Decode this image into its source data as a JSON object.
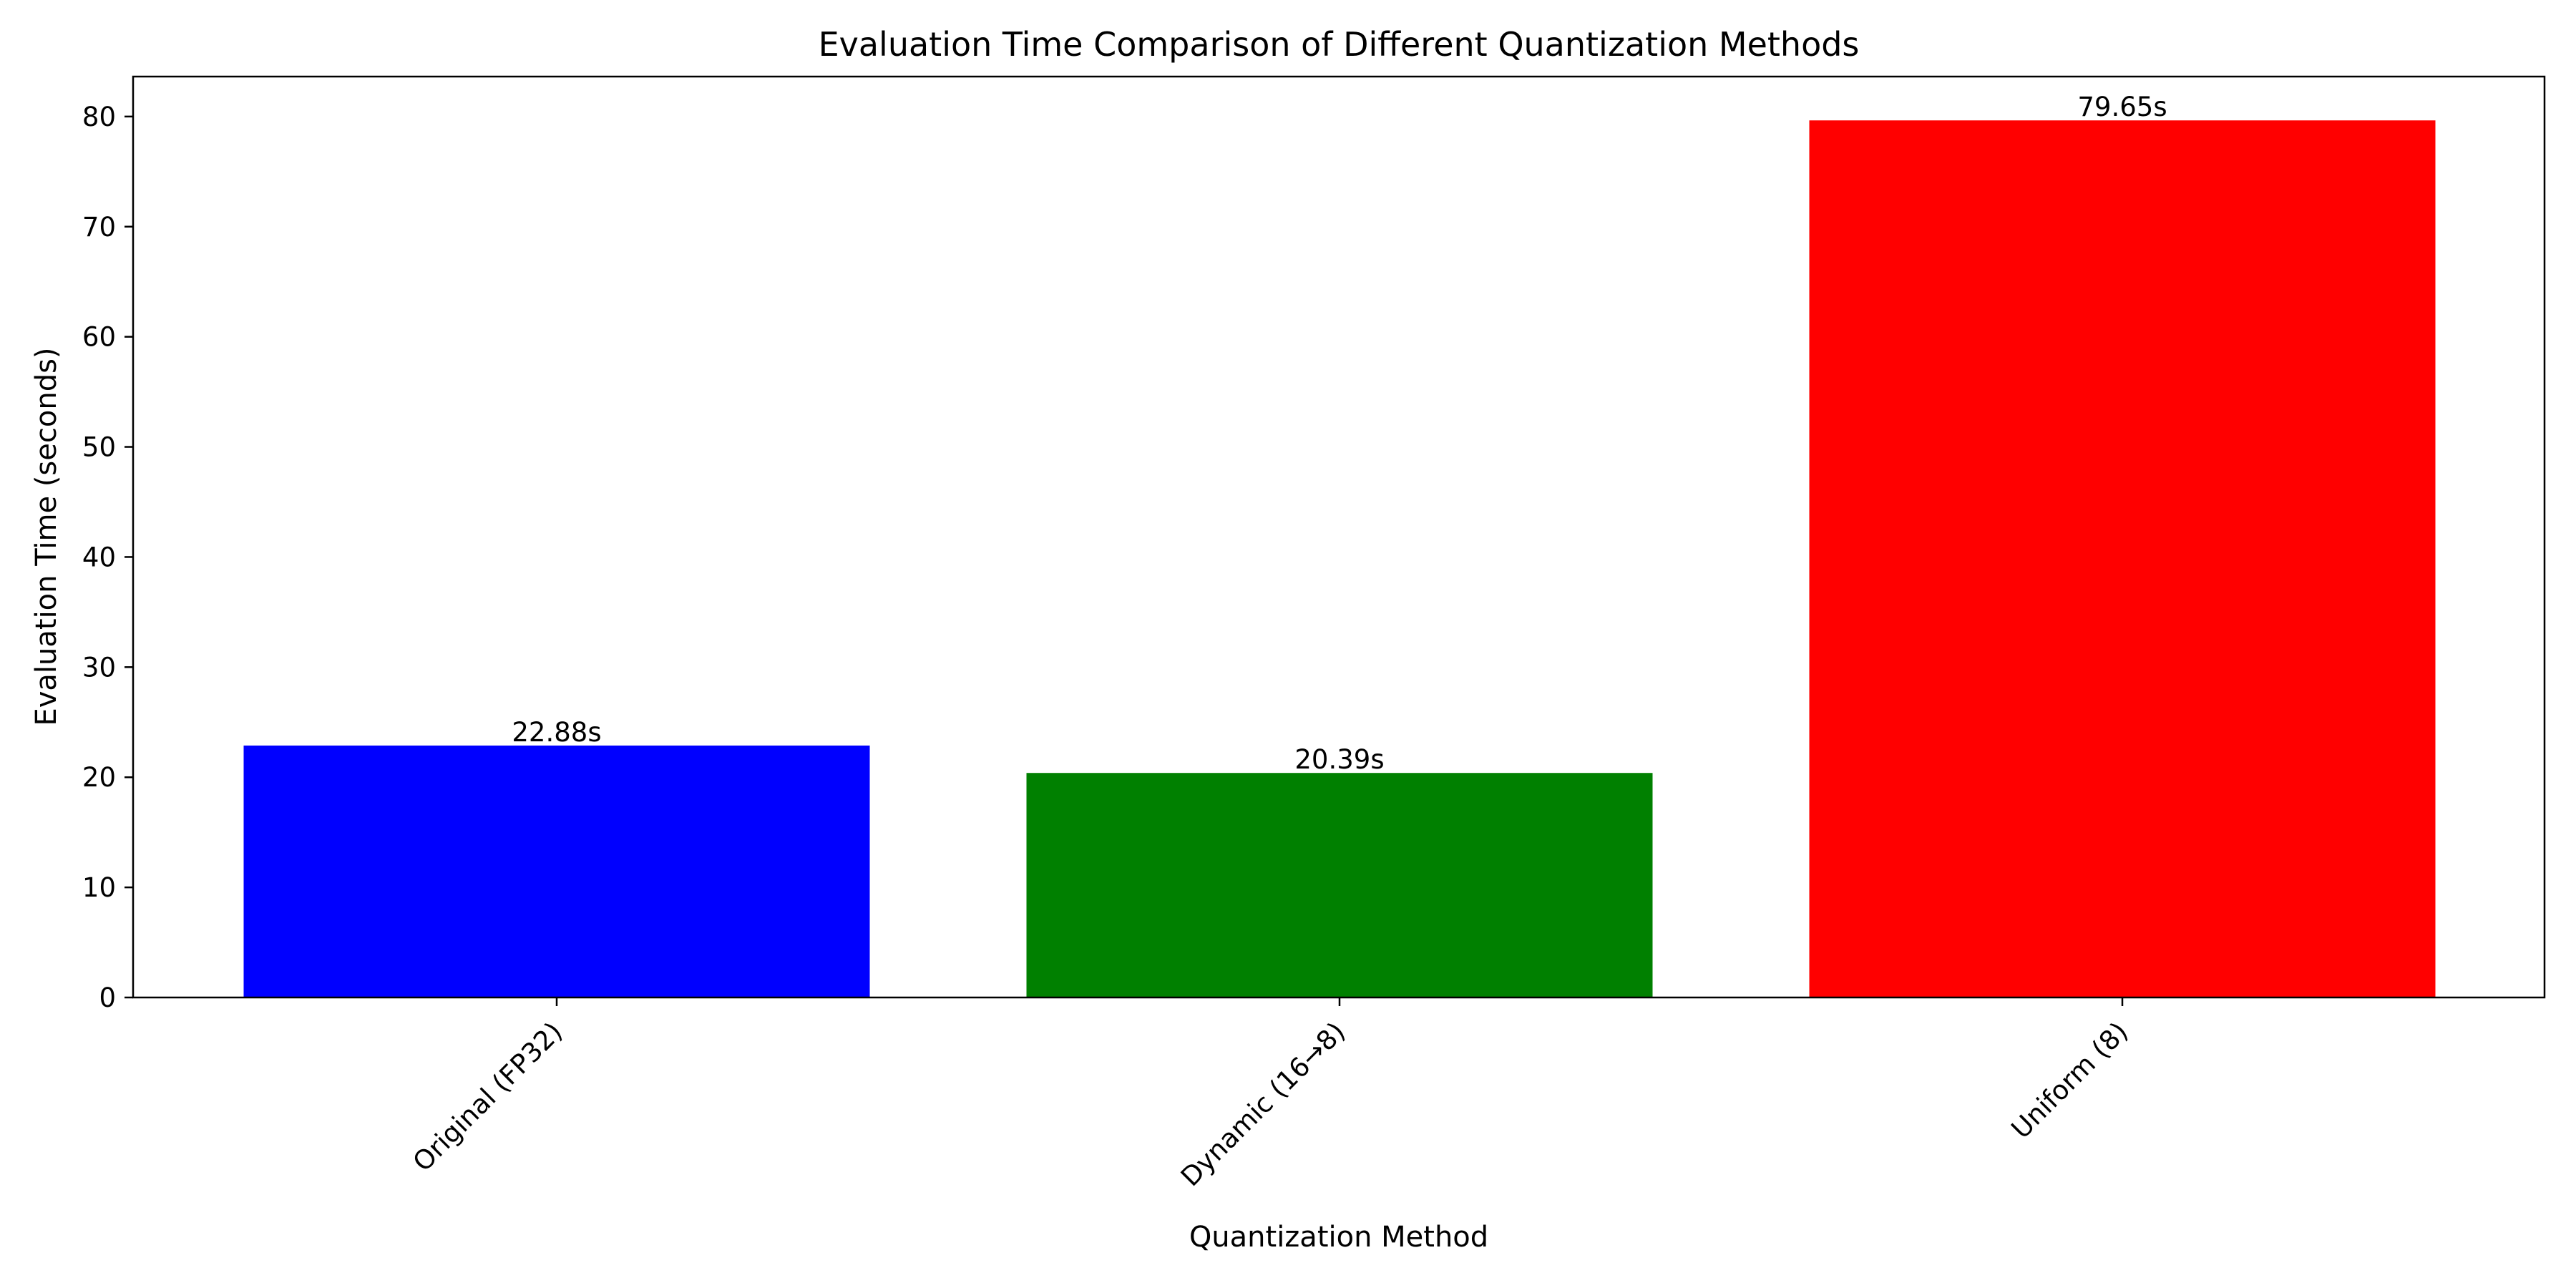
{
  "chart_data": {
    "type": "bar",
    "title": "Evaluation Time Comparison of Different Quantization Methods",
    "xlabel": "Quantization Method",
    "ylabel": "Evaluation Time (seconds)",
    "categories": [
      "Original (FP32)",
      "Dynamic (16→8)",
      "Uniform (8)"
    ],
    "values": [
      22.88,
      20.39,
      79.65
    ],
    "data_labels": [
      "22.88s",
      "20.39s",
      "79.65s"
    ],
    "colors": [
      "#0000ff",
      "#008000",
      "#ff0000"
    ],
    "ylim": [
      0,
      83.63
    ],
    "yticks": [
      0,
      10,
      20,
      30,
      40,
      50,
      60,
      70,
      80
    ],
    "ytick_labels": [
      "0",
      "10",
      "20",
      "30",
      "40",
      "50",
      "60",
      "70",
      "80"
    ],
    "grid": false,
    "legend": "none"
  }
}
